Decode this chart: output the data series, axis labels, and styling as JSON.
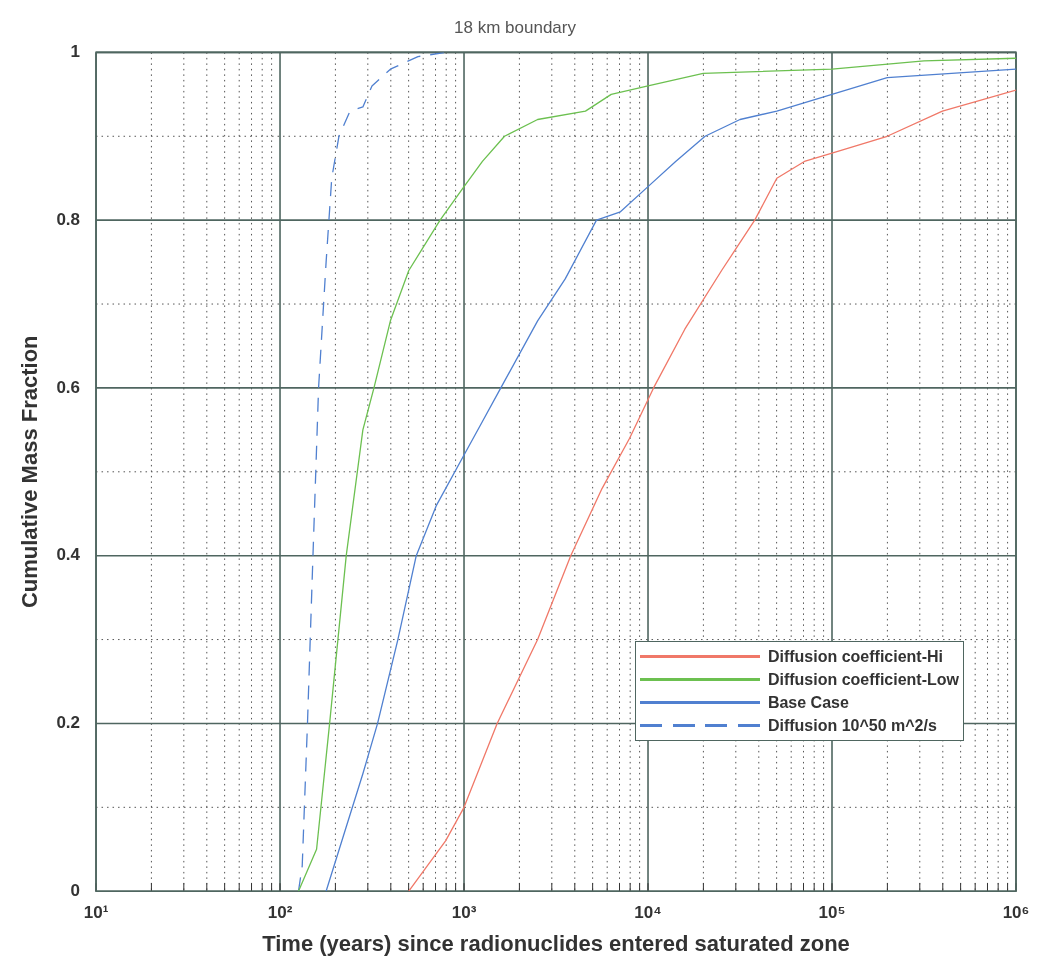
{
  "chart_data": {
    "type": "line",
    "title": "18 km boundary",
    "xlabel": "Time (years) since radionuclides entered saturated zone",
    "ylabel": "Cumulative Mass Fraction",
    "log": "x",
    "grid": true,
    "legend": "bottom right",
    "marker": "none",
    "xlim": [
      10,
      1000000
    ],
    "xticks": [
      {
        "value": 10,
        "label": "10¹"
      },
      {
        "value": 20,
        "label": null
      },
      {
        "value": 30,
        "label": null
      },
      {
        "value": 40,
        "label": null
      },
      {
        "value": 50,
        "label": null
      },
      {
        "value": 60,
        "label": null
      },
      {
        "value": 70,
        "label": null
      },
      {
        "value": 80,
        "label": null
      },
      {
        "value": 90,
        "label": null
      },
      {
        "value": 100,
        "label": "10²"
      },
      {
        "value": 200,
        "label": null
      },
      {
        "value": 300,
        "label": null
      },
      {
        "value": 400,
        "label": null
      },
      {
        "value": 500,
        "label": null
      },
      {
        "value": 600,
        "label": null
      },
      {
        "value": 700,
        "label": null
      },
      {
        "value": 800,
        "label": null
      },
      {
        "value": 900,
        "label": null
      },
      {
        "value": 1000,
        "label": "10³"
      },
      {
        "value": 2000,
        "label": null
      },
      {
        "value": 3000,
        "label": null
      },
      {
        "value": 4000,
        "label": null
      },
      {
        "value": 5000,
        "label": null
      },
      {
        "value": 6000,
        "label": null
      },
      {
        "value": 7000,
        "label": null
      },
      {
        "value": 8000,
        "label": null
      },
      {
        "value": 9000,
        "label": null
      },
      {
        "value": 10000,
        "label": "10⁴"
      },
      {
        "value": 20000,
        "label": null
      },
      {
        "value": 30000,
        "label": null
      },
      {
        "value": 40000,
        "label": null
      },
      {
        "value": 50000,
        "label": null
      },
      {
        "value": 60000,
        "label": null
      },
      {
        "value": 70000,
        "label": null
      },
      {
        "value": 80000,
        "label": null
      },
      {
        "value": 90000,
        "label": null
      },
      {
        "value": 100000,
        "label": "10⁵"
      },
      {
        "value": 200000,
        "label": null
      },
      {
        "value": 300000,
        "label": null
      },
      {
        "value": 400000,
        "label": null
      },
      {
        "value": 500000,
        "label": null
      },
      {
        "value": 600000,
        "label": null
      },
      {
        "value": 700000,
        "label": null
      },
      {
        "value": 800000,
        "label": null
      },
      {
        "value": 900000,
        "label": null
      },
      {
        "value": 1000000,
        "label": "10⁶"
      }
    ],
    "ylim": [
      0,
      1
    ],
    "yticks": [
      0,
      {
        "value": 0.1,
        "label": null
      },
      0.2,
      {
        "value": 0.3,
        "label": null
      },
      0.4,
      {
        "value": 0.5,
        "label": null
      },
      0.6,
      {
        "value": 0.7,
        "label": null
      },
      0.8,
      {
        "value": 0.9,
        "label": null
      },
      1
    ],
    "series": [
      {
        "name": "Diffusion coefficient-Hi",
        "color": "#f07868",
        "x": [
          501,
          794,
          1000,
          1514,
          2512,
          3802,
          5623,
          7943,
          10720,
          15850,
          25120,
          38020,
          50120,
          70790,
          100000,
          199500,
          398100,
          1000000
        ],
        "values": [
          0,
          0.06,
          0.1,
          0.2,
          0.3,
          0.4,
          0.48,
          0.54,
          0.6,
          0.67,
          0.74,
          0.8,
          0.85,
          0.87,
          0.88,
          0.9,
          0.93,
          0.955
        ]
      },
      {
        "name": "Diffusion coefficient-Low",
        "color": "#6cc050",
        "x": [
          126,
          158,
          186,
          229,
          282,
          324,
          398,
          501,
          741,
          1000,
          1259,
          1660,
          2512,
          4571,
          6310,
          10000,
          19950,
          100000,
          316200,
          1000000
        ],
        "values": [
          0,
          0.05,
          0.2,
          0.4,
          0.55,
          0.6,
          0.68,
          0.74,
          0.8,
          0.84,
          0.87,
          0.9,
          0.92,
          0.93,
          0.95,
          0.96,
          0.975,
          0.98,
          0.99,
          0.993
        ]
      },
      {
        "name": "Base Case",
        "color": "#5080d0",
        "x": [
          178,
          224,
          282,
          339,
          437,
          550,
          708,
          1000,
          1259,
          1585,
          2512,
          3548,
          5248,
          7079,
          10000,
          14130,
          20420,
          31620,
          50120,
          100000,
          199500,
          1000000
        ],
        "values": [
          0,
          0.07,
          0.14,
          0.2,
          0.3,
          0.4,
          0.46,
          0.52,
          0.56,
          0.6,
          0.68,
          0.73,
          0.8,
          0.81,
          0.84,
          0.87,
          0.9,
          0.92,
          0.93,
          0.95,
          0.97,
          0.98
        ]
      },
      {
        "name": "Diffusion 10^50 m^2/s",
        "color": "#5080d0",
        "line_style": "dashed",
        "x": [
          126,
          132,
          141,
          151,
          162,
          178,
          191,
          209,
          240,
          282,
          316,
          398,
          562,
          794
        ],
        "values": [
          0,
          0.03,
          0.2,
          0.4,
          0.6,
          0.75,
          0.85,
          0.9,
          0.93,
          0.935,
          0.96,
          0.98,
          0.995,
          1
        ]
      }
    ]
  }
}
